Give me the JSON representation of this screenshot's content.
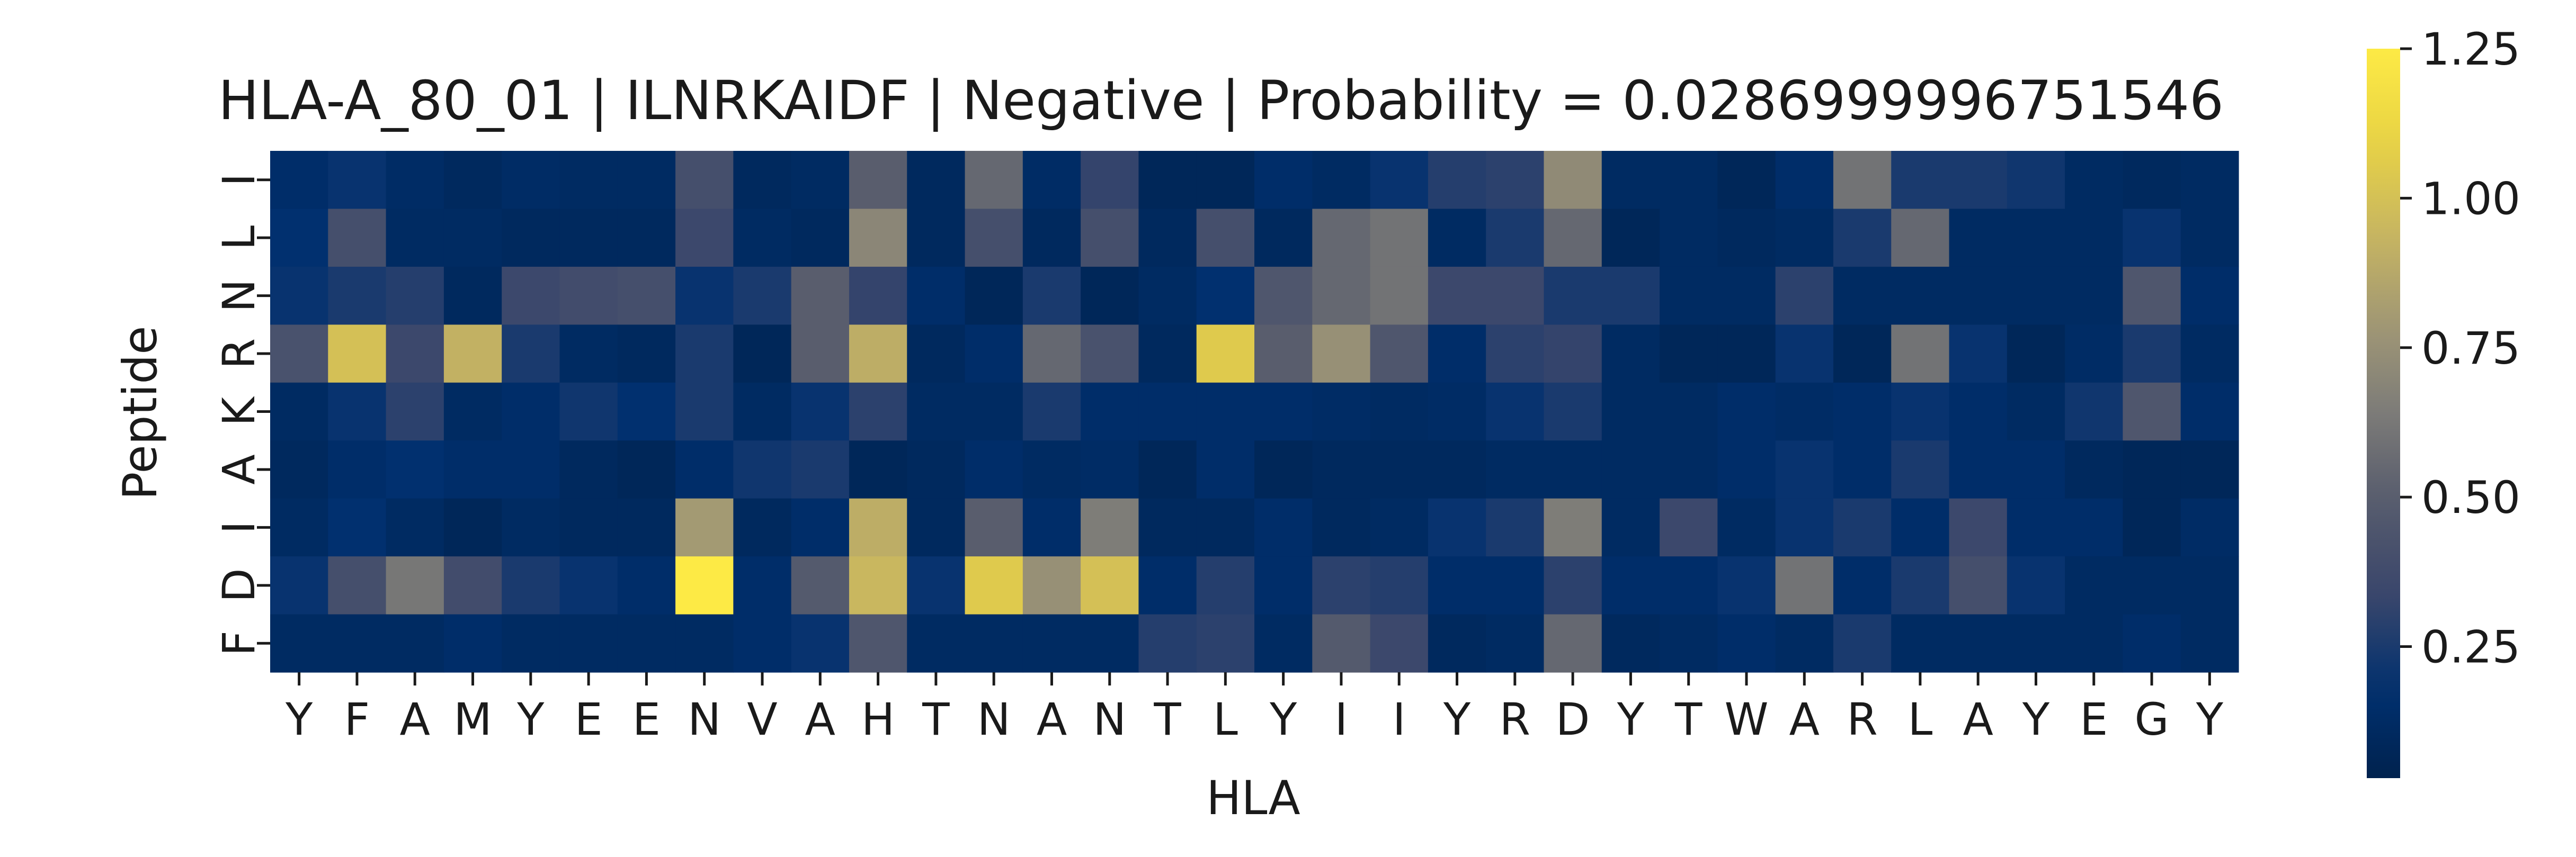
{
  "chart_data": {
    "type": "heatmap",
    "title": "HLA-A_80_01 | ILNRKAIDF | Negative | Probability = 0.0286999996751546",
    "xlabel": "HLA",
    "ylabel": "Peptide",
    "x_labels": [
      "Y",
      "F",
      "A",
      "M",
      "Y",
      "E",
      "E",
      "N",
      "V",
      "A",
      "H",
      "T",
      "N",
      "A",
      "N",
      "T",
      "L",
      "Y",
      "I",
      "I",
      "Y",
      "R",
      "D",
      "Y",
      "T",
      "W",
      "A",
      "R",
      "L",
      "A",
      "Y",
      "E",
      "G",
      "Y"
    ],
    "y_labels": [
      "I",
      "L",
      "N",
      "R",
      "K",
      "A",
      "I",
      "D",
      "F"
    ],
    "colormap": "cividis",
    "vmin": 0.03,
    "vmax": 1.25,
    "colorbar_ticks": [
      {
        "value": 0.25,
        "label": "0.25"
      },
      {
        "value": 0.5,
        "label": "0.50"
      },
      {
        "value": 0.75,
        "label": "0.75"
      },
      {
        "value": 1.0,
        "label": "1.00"
      },
      {
        "value": 1.25,
        "label": "1.25"
      }
    ],
    "values": [
      [
        0.15,
        0.2,
        0.13,
        0.1,
        0.13,
        0.12,
        0.12,
        0.4,
        0.1,
        0.12,
        0.5,
        0.1,
        0.55,
        0.13,
        0.32,
        0.08,
        0.08,
        0.15,
        0.12,
        0.2,
        0.28,
        0.3,
        0.72,
        0.12,
        0.12,
        0.08,
        0.15,
        0.6,
        0.25,
        0.25,
        0.22,
        0.12,
        0.1,
        0.12
      ],
      [
        0.18,
        0.4,
        0.12,
        0.12,
        0.1,
        0.1,
        0.1,
        0.35,
        0.12,
        0.1,
        0.7,
        0.1,
        0.4,
        0.1,
        0.4,
        0.1,
        0.4,
        0.1,
        0.55,
        0.6,
        0.12,
        0.25,
        0.55,
        0.08,
        0.12,
        0.1,
        0.12,
        0.25,
        0.55,
        0.12,
        0.12,
        0.12,
        0.2,
        0.12
      ],
      [
        0.2,
        0.25,
        0.28,
        0.1,
        0.35,
        0.38,
        0.4,
        0.2,
        0.25,
        0.5,
        0.32,
        0.15,
        0.08,
        0.25,
        0.08,
        0.12,
        0.18,
        0.45,
        0.55,
        0.6,
        0.35,
        0.35,
        0.25,
        0.25,
        0.12,
        0.12,
        0.3,
        0.12,
        0.12,
        0.12,
        0.12,
        0.12,
        0.45,
        0.15
      ],
      [
        0.42,
        1.0,
        0.35,
        0.92,
        0.25,
        0.12,
        0.1,
        0.25,
        0.08,
        0.5,
        0.9,
        0.1,
        0.15,
        0.55,
        0.42,
        0.1,
        1.05,
        0.5,
        0.75,
        0.45,
        0.15,
        0.3,
        0.32,
        0.12,
        0.08,
        0.08,
        0.2,
        0.08,
        0.6,
        0.2,
        0.08,
        0.13,
        0.25,
        0.12
      ],
      [
        0.12,
        0.2,
        0.3,
        0.12,
        0.15,
        0.22,
        0.18,
        0.25,
        0.12,
        0.2,
        0.3,
        0.12,
        0.12,
        0.25,
        0.15,
        0.15,
        0.15,
        0.15,
        0.13,
        0.12,
        0.13,
        0.2,
        0.25,
        0.12,
        0.12,
        0.15,
        0.13,
        0.15,
        0.2,
        0.15,
        0.12,
        0.22,
        0.45,
        0.15
      ],
      [
        0.1,
        0.15,
        0.18,
        0.15,
        0.15,
        0.1,
        0.08,
        0.15,
        0.22,
        0.25,
        0.08,
        0.1,
        0.15,
        0.12,
        0.13,
        0.08,
        0.15,
        0.08,
        0.1,
        0.1,
        0.1,
        0.12,
        0.12,
        0.12,
        0.12,
        0.15,
        0.2,
        0.15,
        0.25,
        0.15,
        0.15,
        0.1,
        0.08,
        0.08
      ],
      [
        0.12,
        0.18,
        0.12,
        0.08,
        0.12,
        0.1,
        0.1,
        0.8,
        0.1,
        0.15,
        0.9,
        0.1,
        0.5,
        0.15,
        0.65,
        0.1,
        0.1,
        0.15,
        0.1,
        0.12,
        0.2,
        0.25,
        0.65,
        0.12,
        0.35,
        0.12,
        0.2,
        0.25,
        0.15,
        0.35,
        0.15,
        0.15,
        0.08,
        0.13
      ],
      [
        0.2,
        0.4,
        0.62,
        0.38,
        0.25,
        0.2,
        0.15,
        1.25,
        0.15,
        0.48,
        0.95,
        0.2,
        1.05,
        0.75,
        1.0,
        0.15,
        0.28,
        0.15,
        0.3,
        0.28,
        0.15,
        0.15,
        0.3,
        0.15,
        0.15,
        0.2,
        0.6,
        0.15,
        0.25,
        0.4,
        0.2,
        0.12,
        0.12,
        0.12
      ],
      [
        0.12,
        0.12,
        0.12,
        0.15,
        0.12,
        0.12,
        0.12,
        0.12,
        0.15,
        0.2,
        0.45,
        0.12,
        0.12,
        0.12,
        0.12,
        0.28,
        0.3,
        0.12,
        0.48,
        0.35,
        0.1,
        0.12,
        0.55,
        0.1,
        0.12,
        0.15,
        0.12,
        0.25,
        0.12,
        0.12,
        0.12,
        0.12,
        0.15,
        0.12
      ]
    ]
  }
}
